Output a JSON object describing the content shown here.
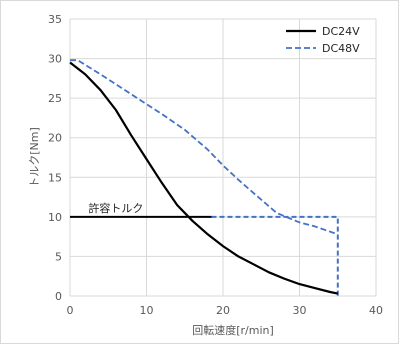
{
  "chart_data": {
    "type": "line",
    "title": "",
    "xlabel": "回転速度[r/min]",
    "ylabel": "トルク[Nm]",
    "xlim": [
      0,
      40
    ],
    "ylim": [
      0,
      35
    ],
    "xticks": [
      "0",
      "10",
      "20",
      "30",
      "40"
    ],
    "yticks": [
      "0",
      "5",
      "10",
      "15",
      "20",
      "25",
      "30",
      "35"
    ],
    "grid": true,
    "legend_position": "top-right",
    "series": [
      {
        "name": "DC24V",
        "style": "solid",
        "color": "#000000",
        "x": [
          0,
          2,
          4,
          6,
          8,
          10,
          12,
          14,
          16,
          18,
          20,
          22,
          24,
          26,
          28,
          30,
          32,
          34,
          35
        ],
        "y": [
          29.5,
          28.0,
          26.0,
          23.5,
          20.3,
          17.3,
          14.3,
          11.5,
          9.5,
          7.8,
          6.3,
          5.0,
          4.0,
          3.0,
          2.2,
          1.5,
          1.0,
          0.5,
          0.3
        ]
      },
      {
        "name": "DC48V",
        "style": "dashed",
        "color": "#4472C4",
        "x": [
          0,
          1,
          4,
          8,
          12,
          15,
          18,
          20,
          22,
          24,
          27,
          30,
          32,
          35
        ],
        "y": [
          29.8,
          29.8,
          28.0,
          25.5,
          23.0,
          21.0,
          18.5,
          16.5,
          14.7,
          13.0,
          10.5,
          9.3,
          8.8,
          7.8
        ]
      }
    ],
    "reference_lines": [
      {
        "label": "許容トルク",
        "style": "solid",
        "color": "#000000",
        "x": [
          0,
          18.5
        ],
        "y": [
          10,
          10
        ]
      },
      {
        "label": "",
        "style": "dashed",
        "color": "#4472C4",
        "x": [
          18.5,
          35,
          35
        ],
        "y": [
          10,
          10,
          0
        ]
      }
    ]
  }
}
